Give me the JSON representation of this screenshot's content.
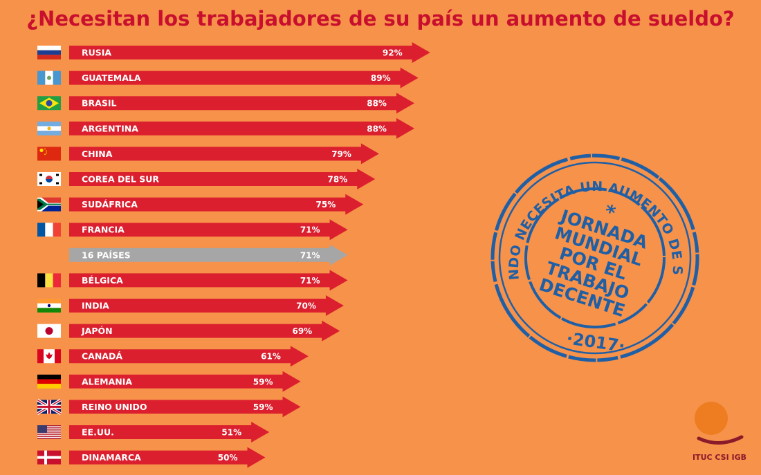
{
  "chart_data": {
    "type": "bar",
    "title": "¿Necesitan los trabajadores de su país un aumento de sueldo?",
    "categories": [
      "RUSIA",
      "GUATEMALA",
      "BRASIL",
      "ARGENTINA",
      "CHINA",
      "COREA DEL SUR",
      "SUDÁFRICA",
      "FRANCIA",
      "16 PAÍSES",
      "BÉLGICA",
      "INDIA",
      "JAPÓN",
      "CANADÁ",
      "ALEMANIA",
      "REINO UNIDO",
      "EE.UU.",
      "DINAMARCA"
    ],
    "values": [
      92,
      89,
      88,
      88,
      79,
      78,
      75,
      71,
      71,
      71,
      70,
      69,
      61,
      59,
      59,
      51,
      50
    ],
    "value_labels": [
      "92%",
      "89%",
      "88%",
      "88%",
      "79%",
      "78%",
      "75%",
      "71%",
      "71%",
      "71%",
      "70%",
      "69%",
      "61%",
      "59%",
      "59%",
      "51%",
      "50%"
    ],
    "unit": "%",
    "orientation": "horizontal",
    "highlight_category": "16 PAÍSES",
    "flags": [
      "russia-flag",
      "guatemala-flag",
      "brazil-flag",
      "argentina-flag",
      "china-flag",
      "south-korea-flag",
      "south-africa-flag",
      "france-flag",
      "",
      "belgium-flag",
      "india-flag",
      "japan-flag",
      "canada-flag",
      "germany-flag",
      "uk-flag",
      "usa-flag",
      "denmark-flag"
    ],
    "colors": {
      "bar": "#db1f2e",
      "highlight": "#a6a6a6",
      "background": "#f6924a",
      "title": "#c8102e",
      "stamp": "#1f5fa6"
    }
  },
  "stamp": {
    "ring_text": "EL MUNDO NECESITA UN AUMENTO DE SUELDO",
    "asterisk": "*",
    "lines": [
      "JORNADA",
      "MUNDIAL",
      "POR EL",
      "TRABAJO",
      "DECENTE"
    ],
    "year": "·2017·"
  },
  "logo": {
    "text": "ITUC CSI IGB"
  }
}
